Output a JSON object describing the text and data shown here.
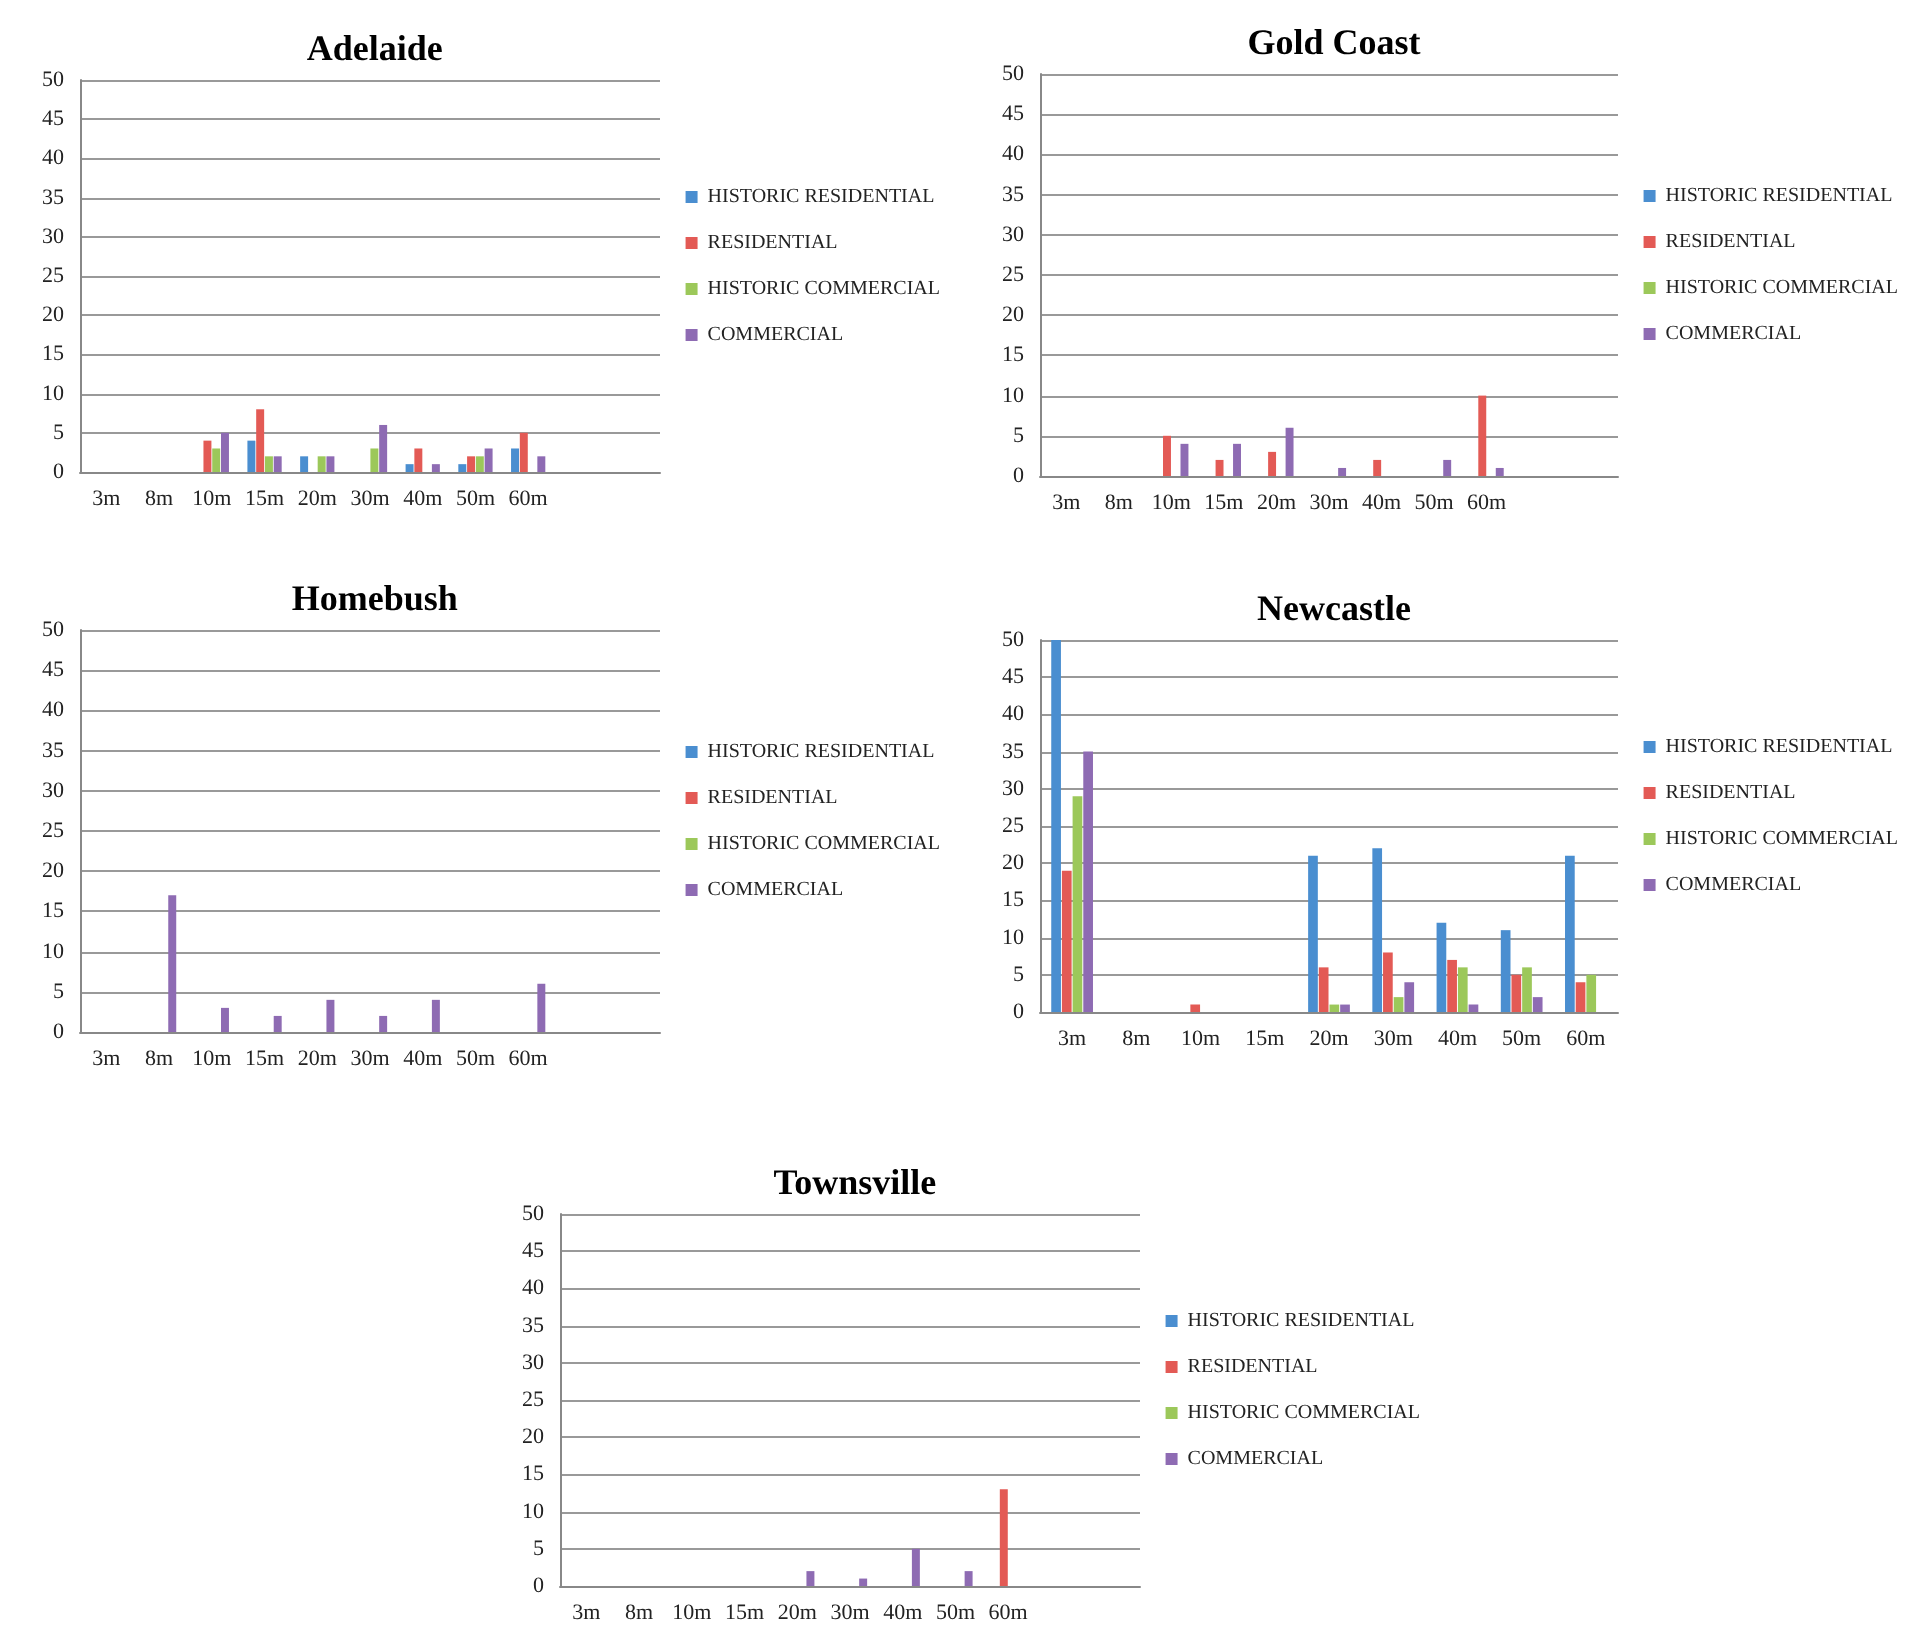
{
  "chart_data": [
    {
      "type": "bar",
      "title": "Adelaide",
      "categories": [
        "3m",
        "8m",
        "10m",
        "15m",
        "20m",
        "30m",
        "40m",
        "50m",
        "60m",
        null,
        null
      ],
      "ylim": [
        0,
        50
      ],
      "yticks": [
        0,
        5,
        10,
        15,
        20,
        25,
        30,
        35,
        40,
        45,
        50
      ],
      "grid": "y",
      "legend": "right",
      "series": [
        {
          "name": "HISTORIC RESIDENTIAL",
          "color": "#4a8ed0",
          "values": [
            0,
            0,
            0,
            4,
            2,
            0,
            1,
            1,
            3,
            null,
            null
          ]
        },
        {
          "name": "RESIDENTIAL",
          "color": "#e35a55",
          "values": [
            0,
            0,
            4,
            8,
            0,
            0,
            3,
            2,
            5,
            null,
            null
          ]
        },
        {
          "name": "HISTORIC COMMERCIAL",
          "color": "#9cc85a",
          "values": [
            0,
            0,
            3,
            2,
            2,
            3,
            0,
            2,
            0,
            null,
            null
          ]
        },
        {
          "name": "COMMERCIAL",
          "color": "#8e6bb3",
          "values": [
            0,
            0,
            5,
            2,
            2,
            6,
            1,
            3,
            2,
            null,
            null
          ]
        }
      ]
    },
    {
      "type": "bar",
      "title": "Gold Coast",
      "categories": [
        "3m",
        "8m",
        "10m",
        "15m",
        "20m",
        "30m",
        "40m",
        "50m",
        "60m",
        null,
        null
      ],
      "ylim": [
        0,
        50
      ],
      "yticks": [
        0,
        5,
        10,
        15,
        20,
        25,
        30,
        35,
        40,
        45,
        50
      ],
      "grid": "y",
      "legend": "right",
      "series": [
        {
          "name": "HISTORIC RESIDENTIAL",
          "color": "#4a8ed0",
          "values": [
            0,
            0,
            0,
            0,
            0,
            0,
            0,
            0,
            0,
            null,
            null
          ]
        },
        {
          "name": "RESIDENTIAL",
          "color": "#e35a55",
          "values": [
            0,
            0,
            5,
            2,
            3,
            0,
            2,
            0,
            10,
            null,
            null
          ]
        },
        {
          "name": "HISTORIC COMMERCIAL",
          "color": "#9cc85a",
          "values": [
            0,
            0,
            0,
            0,
            0,
            0,
            0,
            0,
            0,
            null,
            null
          ]
        },
        {
          "name": "COMMERCIAL",
          "color": "#8e6bb3",
          "values": [
            0,
            0,
            4,
            4,
            6,
            1,
            0,
            2,
            1,
            null,
            null
          ]
        }
      ]
    },
    {
      "type": "bar",
      "title": "Homebush",
      "categories": [
        "3m",
        "8m",
        "10m",
        "15m",
        "20m",
        "30m",
        "40m",
        "50m",
        "60m",
        null,
        null
      ],
      "ylim": [
        0,
        50
      ],
      "yticks": [
        0,
        5,
        10,
        15,
        20,
        25,
        30,
        35,
        40,
        45,
        50
      ],
      "grid": "y",
      "legend": "right",
      "series": [
        {
          "name": "HISTORIC RESIDENTIAL",
          "color": "#4a8ed0",
          "values": [
            0,
            0,
            0,
            0,
            0,
            0,
            0,
            0,
            0,
            null,
            null
          ]
        },
        {
          "name": "RESIDENTIAL",
          "color": "#e35a55",
          "values": [
            0,
            0,
            0,
            0,
            0,
            0,
            0,
            0,
            0,
            null,
            null
          ]
        },
        {
          "name": "HISTORIC COMMERCIAL",
          "color": "#9cc85a",
          "values": [
            0,
            0,
            0,
            0,
            0,
            0,
            0,
            0,
            0,
            null,
            null
          ]
        },
        {
          "name": "COMMERCIAL",
          "color": "#8e6bb3",
          "values": [
            0,
            17,
            3,
            2,
            4,
            2,
            4,
            0,
            6,
            null,
            null
          ]
        }
      ]
    },
    {
      "type": "bar",
      "title": "Newcastle",
      "categories": [
        "3m",
        "8m",
        "10m",
        "15m",
        "20m",
        "30m",
        "40m",
        "50m",
        "60m"
      ],
      "ylim": [
        0,
        50
      ],
      "yticks": [
        0,
        5,
        10,
        15,
        20,
        25,
        30,
        35,
        40,
        45,
        50
      ],
      "grid": "y",
      "legend": "right",
      "series": [
        {
          "name": "HISTORIC RESIDENTIAL",
          "color": "#4a8ed0",
          "values": [
            50,
            0,
            0,
            0,
            21,
            22,
            12,
            11,
            21
          ]
        },
        {
          "name": "RESIDENTIAL",
          "color": "#e35a55",
          "values": [
            19,
            0,
            1,
            0,
            6,
            8,
            7,
            5,
            4
          ]
        },
        {
          "name": "HISTORIC COMMERCIAL",
          "color": "#9cc85a",
          "values": [
            29,
            0,
            0,
            0,
            1,
            2,
            6,
            6,
            5
          ]
        },
        {
          "name": "COMMERCIAL",
          "color": "#8e6bb3",
          "values": [
            35,
            0,
            0,
            0,
            1,
            4,
            1,
            2,
            0
          ]
        }
      ]
    },
    {
      "type": "bar",
      "title": "Townsville",
      "categories": [
        "3m",
        "8m",
        "10m",
        "15m",
        "20m",
        "30m",
        "40m",
        "50m",
        "60m",
        null,
        null
      ],
      "ylim": [
        0,
        50
      ],
      "yticks": [
        0,
        5,
        10,
        15,
        20,
        25,
        30,
        35,
        40,
        45,
        50
      ],
      "grid": "y",
      "legend": "right",
      "series": [
        {
          "name": "HISTORIC RESIDENTIAL",
          "color": "#4a8ed0",
          "values": [
            0,
            0,
            0,
            0,
            0,
            0,
            0,
            0,
            0,
            null,
            null
          ]
        },
        {
          "name": "RESIDENTIAL",
          "color": "#e35a55",
          "values": [
            0,
            0,
            0,
            0,
            0,
            0,
            0,
            0,
            13,
            null,
            null
          ]
        },
        {
          "name": "HISTORIC COMMERCIAL",
          "color": "#9cc85a",
          "values": [
            0,
            0,
            0,
            0,
            0,
            0,
            0,
            0,
            0,
            null,
            null
          ]
        },
        {
          "name": "COMMERCIAL",
          "color": "#8e6bb3",
          "values": [
            0,
            0,
            0,
            0,
            2,
            1,
            5,
            2,
            0,
            null,
            null
          ]
        }
      ]
    }
  ]
}
